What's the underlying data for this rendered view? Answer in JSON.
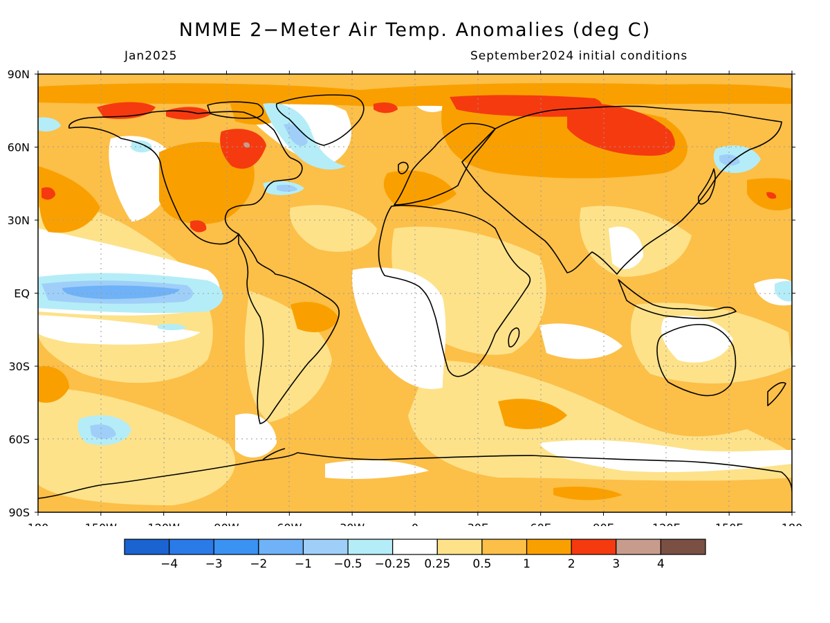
{
  "title": "NMME 2−Meter Air Temp. Anomalies (deg C)",
  "subtitle_left": "Jan2025",
  "subtitle_right": "September2024 initial conditions",
  "map": {
    "lat_ticks": [
      "90N",
      "60N",
      "30N",
      "EQ",
      "30S",
      "60S",
      "90S"
    ],
    "lon_ticks": [
      "180",
      "150W",
      "120W",
      "90W",
      "60W",
      "30W",
      "0",
      "30E",
      "60E",
      "90E",
      "120E",
      "150E",
      "180"
    ],
    "background_color": "#fcbf48"
  },
  "colorbar": {
    "colors": [
      "#1a63d1",
      "#2a7ae8",
      "#3a92f2",
      "#6fb2f7",
      "#9fcff9",
      "#b4edf7",
      "#ffffff",
      "#fde28a",
      "#fcbf48",
      "#f9a000",
      "#f53a10",
      "#c89c8c",
      "#7a5044"
    ],
    "labels": [
      "−4",
      "−3",
      "−2",
      "−1",
      "−0.5",
      "−0.25",
      "0.25",
      "0.5",
      "1",
      "2",
      "3",
      "4"
    ]
  }
}
